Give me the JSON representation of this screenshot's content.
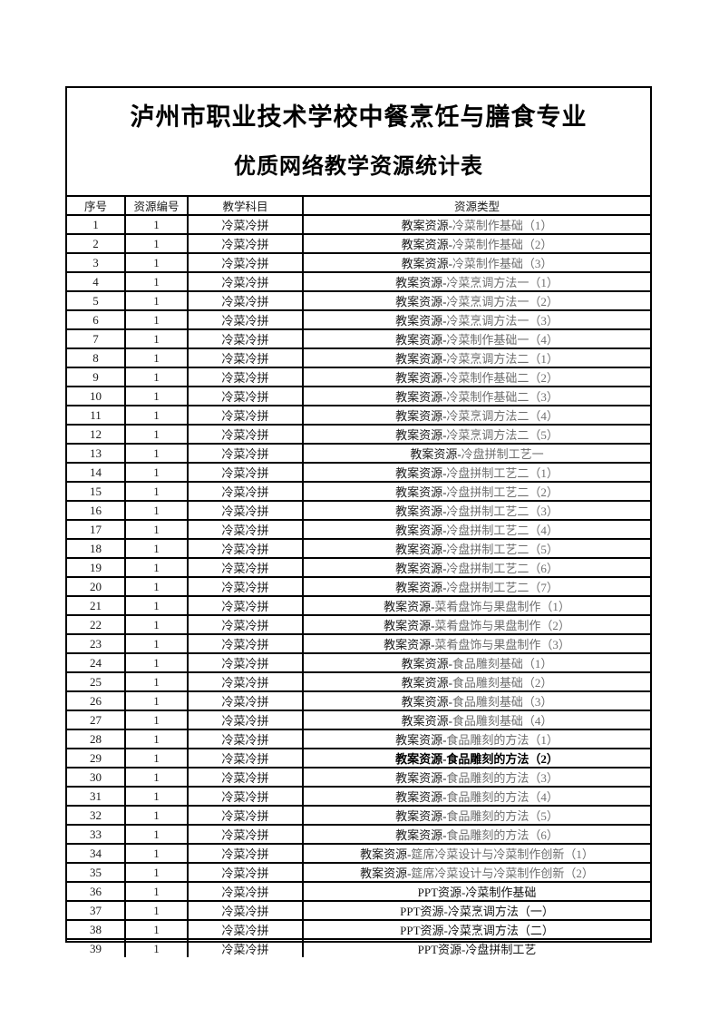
{
  "page": {
    "title_line1": "泸州市职业技术学校中餐烹饪与膳食专业",
    "title_line2": "优质网络教学资源统计表"
  },
  "table": {
    "headers": [
      "序号",
      "资源编号",
      "教学科目",
      "资源类型"
    ],
    "rows": [
      {
        "no": "1",
        "code": "1",
        "subject": "冷菜冷拼",
        "type_prefix": "教案资源-",
        "type_suffix": "冷菜制作基础（1）",
        "variant": "std"
      },
      {
        "no": "2",
        "code": "1",
        "subject": "冷菜冷拼",
        "type_prefix": "教案资源-",
        "type_suffix": "冷菜制作基础（2）",
        "variant": "std"
      },
      {
        "no": "3",
        "code": "1",
        "subject": "冷菜冷拼",
        "type_prefix": "教案资源-",
        "type_suffix": "冷菜制作基础（3）",
        "variant": "std"
      },
      {
        "no": "4",
        "code": "1",
        "subject": "冷菜冷拼",
        "type_prefix": "教案资源-",
        "type_suffix": "冷菜烹调方法一（1）",
        "variant": "std"
      },
      {
        "no": "5",
        "code": "1",
        "subject": "冷菜冷拼",
        "type_prefix": "教案资源-",
        "type_suffix": "冷菜烹调方法一（2）",
        "variant": "std"
      },
      {
        "no": "6",
        "code": "1",
        "subject": "冷菜冷拼",
        "type_prefix": "教案资源-",
        "type_suffix": "冷菜烹调方法一（3）",
        "variant": "std"
      },
      {
        "no": "7",
        "code": "1",
        "subject": "冷菜冷拼",
        "type_prefix": "教案资源-",
        "type_suffix": "冷菜制作基础一（4）",
        "variant": "std"
      },
      {
        "no": "8",
        "code": "1",
        "subject": "冷菜冷拼",
        "type_prefix": "教案资源-",
        "type_suffix": "冷菜烹调方法二（1）",
        "variant": "std"
      },
      {
        "no": "9",
        "code": "1",
        "subject": "冷菜冷拼",
        "type_prefix": "教案资源-",
        "type_suffix": "冷菜制作基础二（2）",
        "variant": "std"
      },
      {
        "no": "10",
        "code": "1",
        "subject": "冷菜冷拼",
        "type_prefix": "教案资源-",
        "type_suffix": "冷菜制作基础二（3）",
        "variant": "std"
      },
      {
        "no": "11",
        "code": "1",
        "subject": "冷菜冷拼",
        "type_prefix": "教案资源-",
        "type_suffix": "冷菜烹调方法二（4）",
        "variant": "std"
      },
      {
        "no": "12",
        "code": "1",
        "subject": "冷菜冷拼",
        "type_prefix": "教案资源-",
        "type_suffix": "冷菜烹调方法二（5）",
        "variant": "std"
      },
      {
        "no": "13",
        "code": "1",
        "subject": "冷菜冷拼",
        "type_prefix": "教案资源-",
        "type_suffix": "冷盘拼制工艺一",
        "variant": "std"
      },
      {
        "no": "14",
        "code": "1",
        "subject": "冷菜冷拼",
        "type_prefix": "教案资源-",
        "type_suffix": "冷盘拼制工艺二（1）",
        "variant": "std"
      },
      {
        "no": "15",
        "code": "1",
        "subject": "冷菜冷拼",
        "type_prefix": "教案资源-",
        "type_suffix": "冷盘拼制工艺二（2）",
        "variant": "std"
      },
      {
        "no": "16",
        "code": "1",
        "subject": "冷菜冷拼",
        "type_prefix": "教案资源-",
        "type_suffix": "冷盘拼制工艺二（3）",
        "variant": "std"
      },
      {
        "no": "17",
        "code": "1",
        "subject": "冷菜冷拼",
        "type_prefix": "教案资源-",
        "type_suffix": "冷盘拼制工艺二（4）",
        "variant": "std"
      },
      {
        "no": "18",
        "code": "1",
        "subject": "冷菜冷拼",
        "type_prefix": "教案资源-",
        "type_suffix": "冷盘拼制工艺二（5）",
        "variant": "std"
      },
      {
        "no": "19",
        "code": "1",
        "subject": "冷菜冷拼",
        "type_prefix": "教案资源-",
        "type_suffix": "冷盘拼制工艺二（6）",
        "variant": "std"
      },
      {
        "no": "20",
        "code": "1",
        "subject": "冷菜冷拼",
        "type_prefix": "教案资源-",
        "type_suffix": "冷盘拼制工艺二（7）",
        "variant": "std"
      },
      {
        "no": "21",
        "code": "1",
        "subject": "冷菜冷拼",
        "type_prefix": "教案资源-",
        "type_suffix": "菜肴盘饰与果盘制作（1）",
        "variant": "std"
      },
      {
        "no": "22",
        "code": "1",
        "subject": "冷菜冷拼",
        "type_prefix": "教案资源-",
        "type_suffix": "菜肴盘饰与果盘制作（2）",
        "variant": "std"
      },
      {
        "no": "23",
        "code": "1",
        "subject": "冷菜冷拼",
        "type_prefix": "教案资源-",
        "type_suffix": "菜肴盘饰与果盘制作（3）",
        "variant": "std"
      },
      {
        "no": "24",
        "code": "1",
        "subject": "冷菜冷拼",
        "type_prefix": "教案资源-",
        "type_suffix": "食品雕刻基础（1）",
        "variant": "std"
      },
      {
        "no": "25",
        "code": "1",
        "subject": "冷菜冷拼",
        "type_prefix": "教案资源-",
        "type_suffix": "食品雕刻基础（2）",
        "variant": "std"
      },
      {
        "no": "26",
        "code": "1",
        "subject": "冷菜冷拼",
        "type_prefix": "教案资源-",
        "type_suffix": "食品雕刻基础（3）",
        "variant": "std"
      },
      {
        "no": "27",
        "code": "1",
        "subject": "冷菜冷拼",
        "type_prefix": "教案资源-",
        "type_suffix": "食品雕刻基础（4）",
        "variant": "std"
      },
      {
        "no": "28",
        "code": "1",
        "subject": "冷菜冷拼",
        "type_prefix": "教案资源-",
        "type_suffix": "食品雕刻的方法（1）",
        "variant": "std"
      },
      {
        "no": "29",
        "code": "1",
        "subject": "冷菜冷拼",
        "type_prefix": "教案资源-",
        "type_suffix": "食品雕刻的方法（2）",
        "variant": "bold"
      },
      {
        "no": "30",
        "code": "1",
        "subject": "冷菜冷拼",
        "type_prefix": "教案资源-",
        "type_suffix": "食品雕刻的方法（3）",
        "variant": "std"
      },
      {
        "no": "31",
        "code": "1",
        "subject": "冷菜冷拼",
        "type_prefix": "教案资源-",
        "type_suffix": "食品雕刻的方法（4）",
        "variant": "std"
      },
      {
        "no": "32",
        "code": "1",
        "subject": "冷菜冷拼",
        "type_prefix": "教案资源-",
        "type_suffix": "食品雕刻的方法（5）",
        "variant": "std"
      },
      {
        "no": "33",
        "code": "1",
        "subject": "冷菜冷拼",
        "type_prefix": "教案资源-",
        "type_suffix": "食品雕刻的方法（6）",
        "variant": "std"
      },
      {
        "no": "34",
        "code": "1",
        "subject": "冷菜冷拼",
        "type_prefix": "教案资源-",
        "type_suffix": "筵席冷菜设计与冷菜制作创新（1）",
        "variant": "std"
      },
      {
        "no": "35",
        "code": "1",
        "subject": "冷菜冷拼",
        "type_prefix": "教案资源-",
        "type_suffix": "筵席冷菜设计与冷菜制作创新（2）",
        "variant": "std"
      },
      {
        "no": "36",
        "code": "1",
        "subject": "冷菜冷拼",
        "type_prefix": "PPT资源-",
        "type_suffix": "冷菜制作基础",
        "variant": "dark"
      },
      {
        "no": "37",
        "code": "1",
        "subject": "冷菜冷拼",
        "type_prefix": "PPT资源-",
        "type_suffix": "冷菜烹调方法（一）",
        "variant": "dark"
      },
      {
        "no": "38",
        "code": "1",
        "subject": "冷菜冷拼",
        "type_prefix": "PPT资源-",
        "type_suffix": "冷菜烹调方法（二）",
        "variant": "dark"
      },
      {
        "no": "39",
        "code": "1",
        "subject": "冷菜冷拼",
        "type_prefix": "PPT资源-",
        "type_suffix": "冷盘拼制工艺",
        "variant": "dark"
      }
    ]
  }
}
